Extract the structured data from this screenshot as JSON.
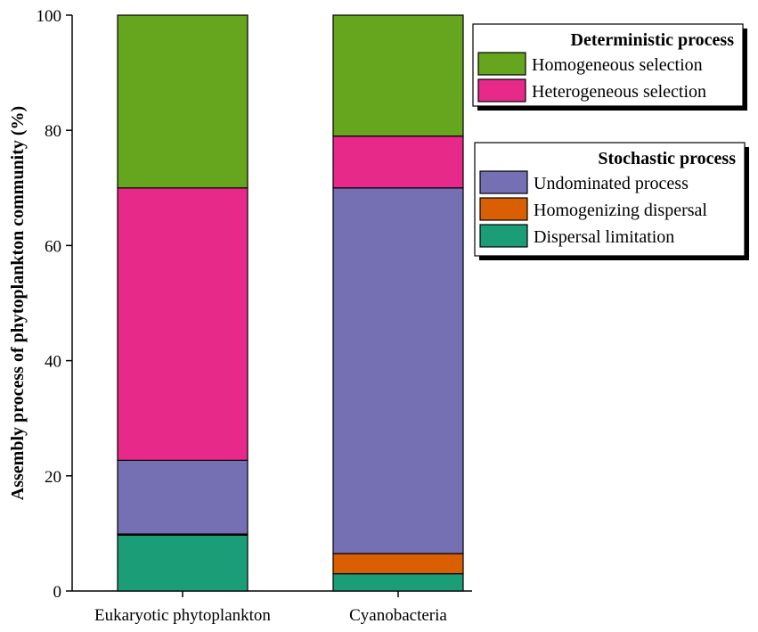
{
  "chart_data": {
    "type": "bar",
    "stacked": true,
    "categories": [
      "Eukaryotic phytoplankton",
      "Cyanobacteria"
    ],
    "ylabel": "Assembly process of phytoplankton community (%)",
    "xlabel": "",
    "ylim": [
      0,
      100
    ],
    "yticks": [
      0,
      20,
      40,
      60,
      80,
      100
    ],
    "grid": false,
    "legend_placement": "top-right",
    "legend_groups": [
      {
        "title": "Deterministic process",
        "items": [
          "Homogeneous selection",
          "Heterogeneous selection"
        ]
      },
      {
        "title": "Stochastic process",
        "items": [
          "Undominated process",
          "Homogenizing dispersal",
          "Dispersal limitation"
        ]
      }
    ],
    "series": [
      {
        "name": "Dispersal limitation",
        "color": "#1b9e77",
        "values": [
          9.7,
          3.0
        ]
      },
      {
        "name": "Homogenizing dispersal",
        "color": "#d95f02",
        "values": [
          0.2,
          3.5
        ]
      },
      {
        "name": "Undominated process",
        "color": "#7570b3",
        "values": [
          12.8,
          63.5
        ]
      },
      {
        "name": "Heterogeneous selection",
        "color": "#e7298a",
        "values": [
          47.3,
          9.0
        ]
      },
      {
        "name": "Homogeneous selection",
        "color": "#66a61e",
        "values": [
          30.0,
          21.0
        ]
      }
    ]
  }
}
